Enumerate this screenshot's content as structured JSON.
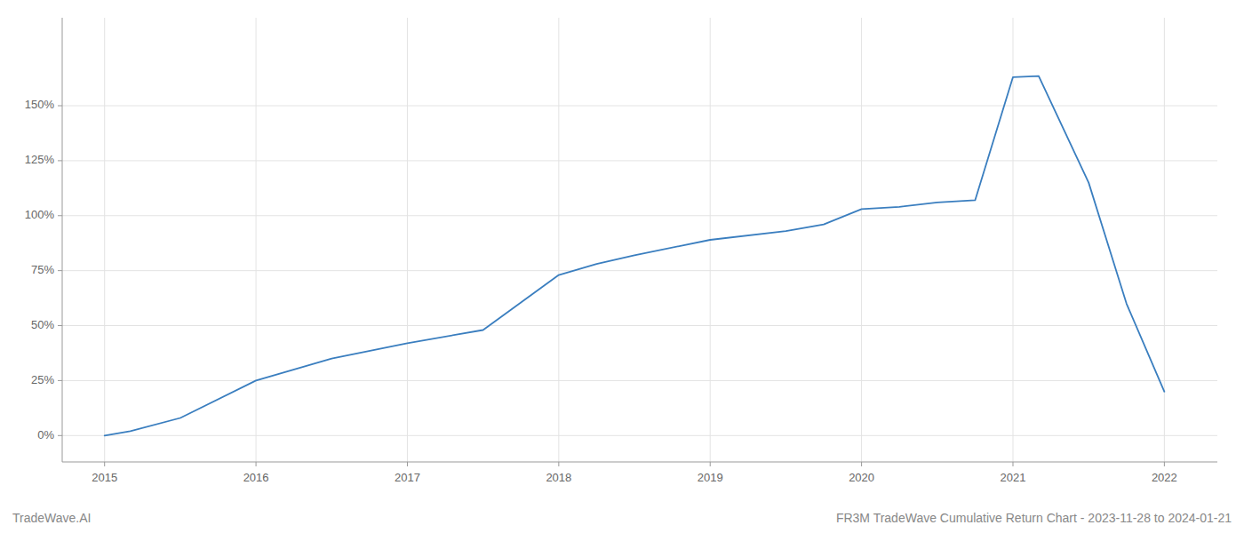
{
  "chart_data": {
    "type": "line",
    "title": "FR3M TradeWave Cumulative Return Chart - 2023-11-28 to 2024-01-21",
    "annotations": [
      "TradeWave.AI"
    ],
    "x": [
      2015.0,
      2015.17,
      2015.5,
      2016.0,
      2016.5,
      2017.0,
      2017.5,
      2018.0,
      2018.25,
      2018.5,
      2019.0,
      2019.5,
      2019.75,
      2020.0,
      2020.25,
      2020.5,
      2020.75,
      2021.0,
      2021.17,
      2021.5,
      2021.75,
      2022.0
    ],
    "values": [
      0.0,
      2.0,
      8.0,
      25.0,
      35.0,
      42.0,
      48.0,
      73.0,
      78.0,
      82.0,
      89.0,
      93.0,
      96.0,
      103.0,
      104.0,
      106.0,
      107.0,
      163.0,
      163.5,
      115.0,
      60.0,
      20.0
    ],
    "color": "#3a7ebf",
    "xlim": [
      2014.72,
      2022.35
    ],
    "ylim": [
      -12,
      190
    ],
    "xticks": [
      2015,
      2016,
      2017,
      2018,
      2019,
      2020,
      2021,
      2022
    ],
    "yticks": [
      {
        "value": 0,
        "label": "0%"
      },
      {
        "value": 25,
        "label": "25%"
      },
      {
        "value": 50,
        "label": "50%"
      },
      {
        "value": 75,
        "label": "75%"
      },
      {
        "value": 100,
        "label": "100%"
      },
      {
        "value": 125,
        "label": "125%"
      },
      {
        "value": 150,
        "label": "150%"
      }
    ],
    "grid": true
  }
}
